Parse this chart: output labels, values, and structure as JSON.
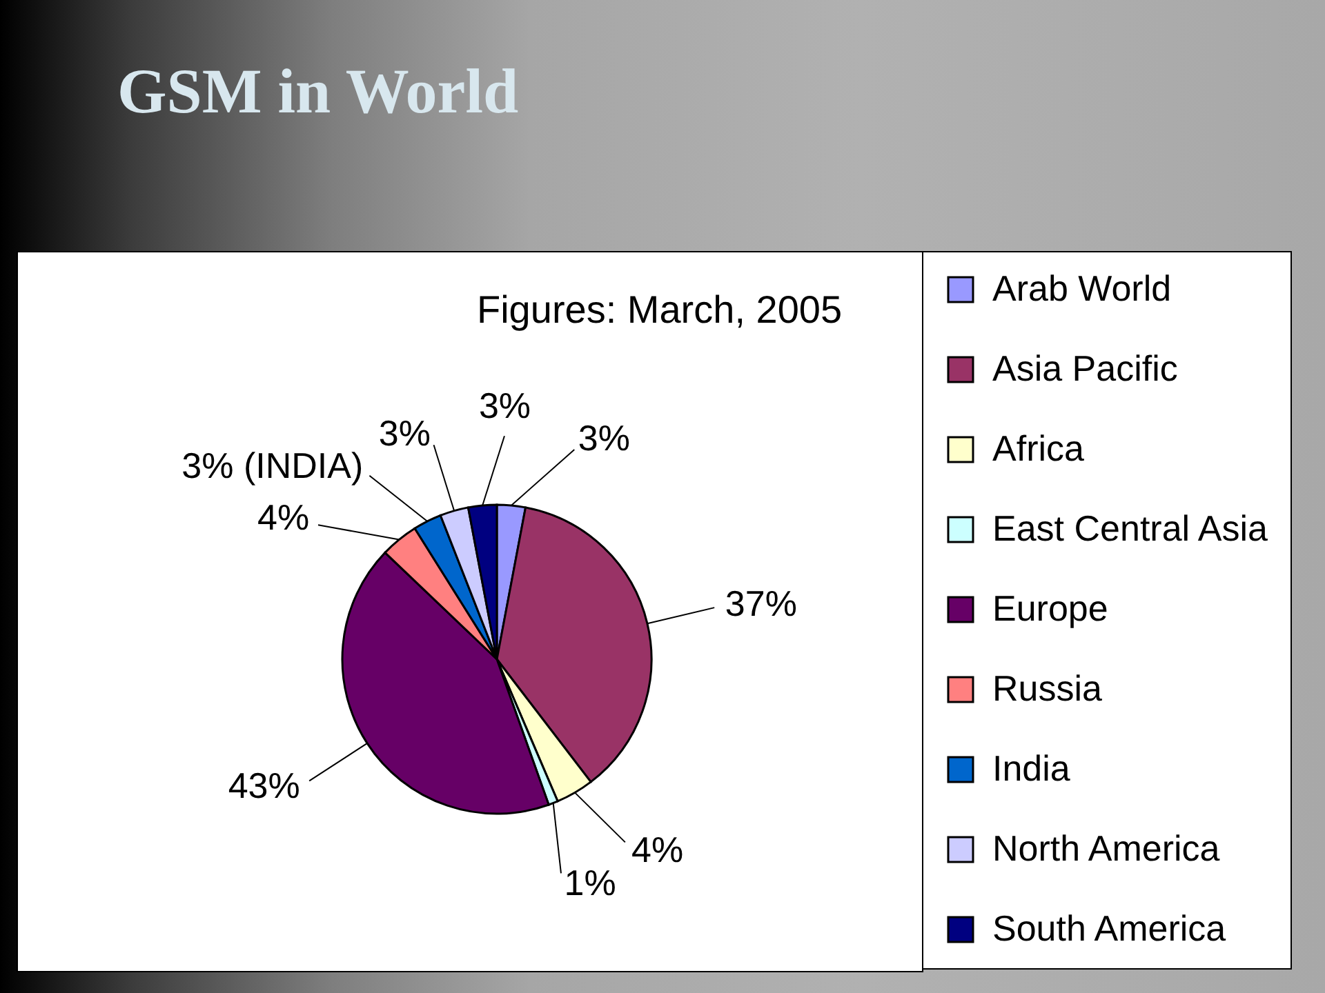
{
  "chart_data": {
    "type": "pie",
    "title": "GSM in World",
    "subtitle": "Figures: March, 2005",
    "categories": [
      "Arab World",
      "Asia Pacific",
      "Africa",
      "East Central Asia",
      "Europe",
      "Russia",
      "India",
      "North America",
      "South America"
    ],
    "values": [
      3,
      37,
      4,
      1,
      43,
      4,
      3,
      3,
      3
    ],
    "colors": [
      "#9999ff",
      "#993366",
      "#ffffcc",
      "#ccffff",
      "#660066",
      "#ff8080",
      "#0066cc",
      "#ccccff",
      "#000080"
    ],
    "value_labels": [
      "3%",
      "37%",
      "4%",
      "1%",
      "43%",
      "4%",
      "3% (INDIA)",
      "3%",
      "3%"
    ],
    "legend": "right"
  }
}
